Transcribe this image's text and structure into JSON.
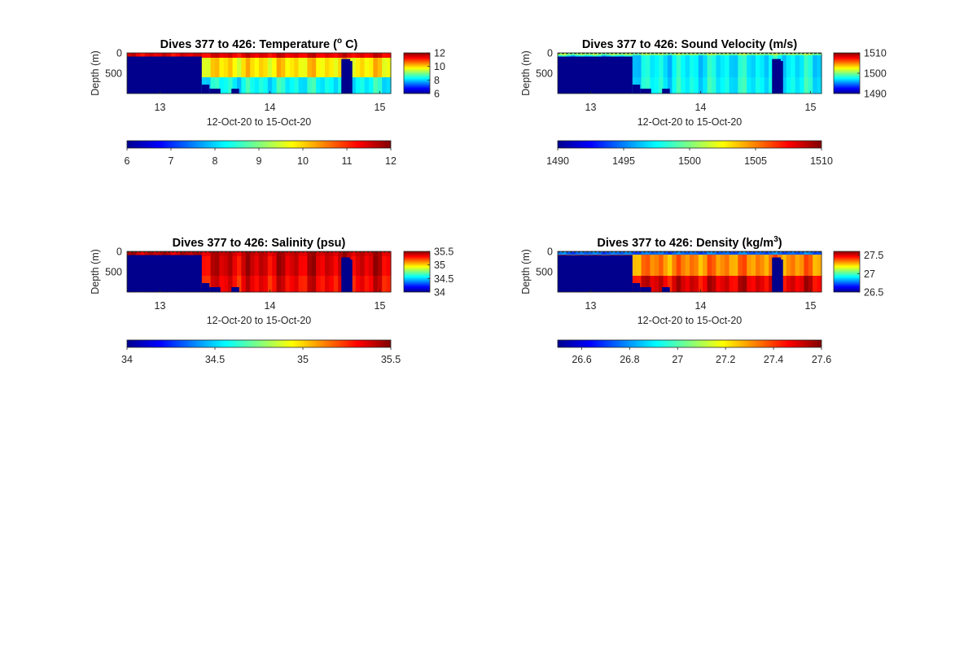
{
  "colors": {
    "jet": [
      "#00008F",
      "#0000FF",
      "#0080FF",
      "#00FFFF",
      "#80FF80",
      "#FFFF00",
      "#FF8000",
      "#FF0000",
      "#800000"
    ],
    "mask": "#00008C",
    "axis": "#262626",
    "background": "#FFFFFF"
  },
  "chart_data": [
    {
      "id": "temperature",
      "type": "heatmap",
      "title": "Dives 377 to 426: Temperature (",
      "title_sup": "o",
      "title_tail": " C)",
      "xlabel": "12-Oct-20 to 15-Oct-20",
      "ylabel": "Depth (m)",
      "xlim": [
        12.7,
        15.1
      ],
      "ylim": [
        0,
        1000
      ],
      "x_ticks": [
        "13",
        "14",
        "15"
      ],
      "y_ticks": [
        "0",
        "500"
      ],
      "colorbar": {
        "min": 6,
        "max": 12,
        "ticks": [
          "12",
          "10",
          "8",
          "6"
        ]
      },
      "hcolorbar": {
        "min": 6,
        "max": 12,
        "ticks": [
          "6",
          "7",
          "8",
          "9",
          "10",
          "11",
          "12"
        ]
      },
      "surface_value": 11.4,
      "surface_depth": 120,
      "deep_value": 9.9,
      "bottom_value": 8.3,
      "gridline": false
    },
    {
      "id": "sound_velocity",
      "type": "heatmap",
      "title": "Dives 377 to 426: Sound Velocity (m/s)",
      "xlabel": "12-Oct-20 to 15-Oct-20",
      "ylabel": "Depth (m)",
      "xlim": [
        12.7,
        15.1
      ],
      "ylim": [
        0,
        1000
      ],
      "x_ticks": [
        "13",
        "14",
        "15"
      ],
      "y_ticks": [
        "0",
        "500"
      ],
      "colorbar": {
        "min": 1490,
        "max": 1510,
        "ticks": [
          "1510",
          "1500",
          "1490"
        ]
      },
      "hcolorbar": {
        "min": 1490,
        "max": 1510,
        "ticks": [
          "1490",
          "1495",
          "1500",
          "1505",
          "1510"
        ]
      },
      "surface_value": 1500.2,
      "surface_depth": 60,
      "deep_value": 1497.3,
      "bottom_value": 1497.6,
      "gridline": true
    },
    {
      "id": "salinity",
      "type": "heatmap",
      "title": "Dives 377 to 426: Salinity (psu)",
      "xlabel": "12-Oct-20 to 15-Oct-20",
      "ylabel": "Depth (m)",
      "xlim": [
        12.7,
        15.1
      ],
      "ylim": [
        0,
        1000
      ],
      "x_ticks": [
        "13",
        "14",
        "15"
      ],
      "y_ticks": [
        "0",
        "500"
      ],
      "colorbar": {
        "min": 34,
        "max": 35.5,
        "ticks": [
          "35.5",
          "35",
          "34.5",
          "34"
        ]
      },
      "hcolorbar": {
        "min": 34,
        "max": 35.5,
        "ticks": [
          "34",
          "34.5",
          "35",
          "35.5"
        ]
      },
      "surface_value": 35.4,
      "surface_depth": 120,
      "deep_value": 35.38,
      "bottom_value": 35.33,
      "gridline": true
    },
    {
      "id": "density",
      "type": "heatmap",
      "title": "Dives 377 to 426: Density (kg/m",
      "title_sup": "3",
      "title_tail": ")",
      "xlabel": "12-Oct-20 to 15-Oct-20",
      "ylabel": "Depth (m)",
      "xlim": [
        12.7,
        15.1
      ],
      "ylim": [
        0,
        1000
      ],
      "x_ticks": [
        "13",
        "14",
        "15"
      ],
      "y_ticks": [
        "0",
        "500"
      ],
      "colorbar": {
        "min": 26.5,
        "max": 27.6,
        "ticks": [
          "27.5",
          "27",
          "26.5"
        ]
      },
      "hcolorbar": {
        "min": 26.5,
        "max": 27.6,
        "ticks": [
          "26.6",
          "26.8",
          "27",
          "27.2",
          "27.4",
          "27.6"
        ]
      },
      "surface_value": 26.75,
      "surface_depth": 80,
      "deep_value": 27.32,
      "bottom_value": 27.5,
      "gridline": true
    }
  ]
}
